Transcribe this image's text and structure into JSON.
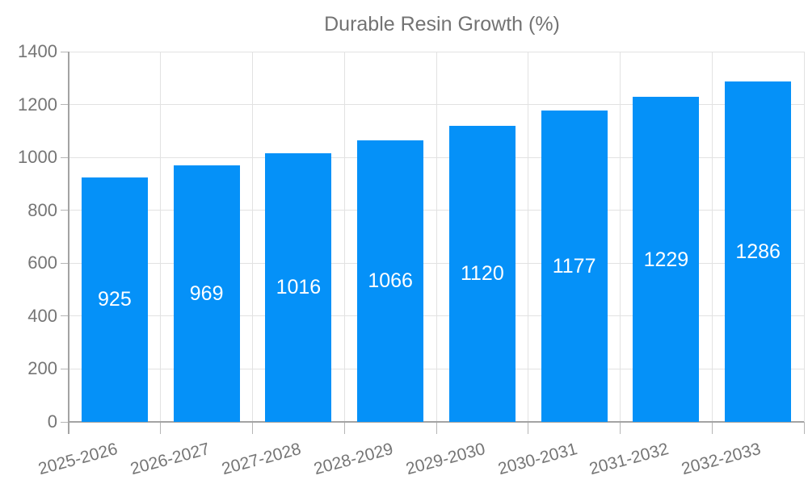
{
  "chart_data": {
    "type": "bar",
    "title": "Durable Resin Growth (%)",
    "legend": {
      "position": "top",
      "entries": [
        "Durable Resin Growth (%)"
      ]
    },
    "categories": [
      "2025-2026",
      "2026-2027",
      "2027-2028",
      "2028-2029",
      "2029-2030",
      "2030-2031",
      "2031-2032",
      "2032-2033"
    ],
    "values": [
      925,
      969,
      1016,
      1066,
      1120,
      1177,
      1229,
      1286
    ],
    "xlabel": "",
    "ylabel": "",
    "ylim": [
      0,
      1400
    ],
    "ytick_step": 200,
    "yticks": [
      0,
      200,
      400,
      600,
      800,
      1000,
      1200,
      1400
    ],
    "grid": "on",
    "bar_label_position": "inside-middle",
    "colors": {
      "bar": "#0591F8",
      "bar_value_text": "#ffffff",
      "grid": "#e2e2e2",
      "axis": "#a3a3a3",
      "tick": "#b5b5b5",
      "tick_text": "#757575",
      "legend_text": "#737373",
      "background": "#ffffff"
    }
  }
}
